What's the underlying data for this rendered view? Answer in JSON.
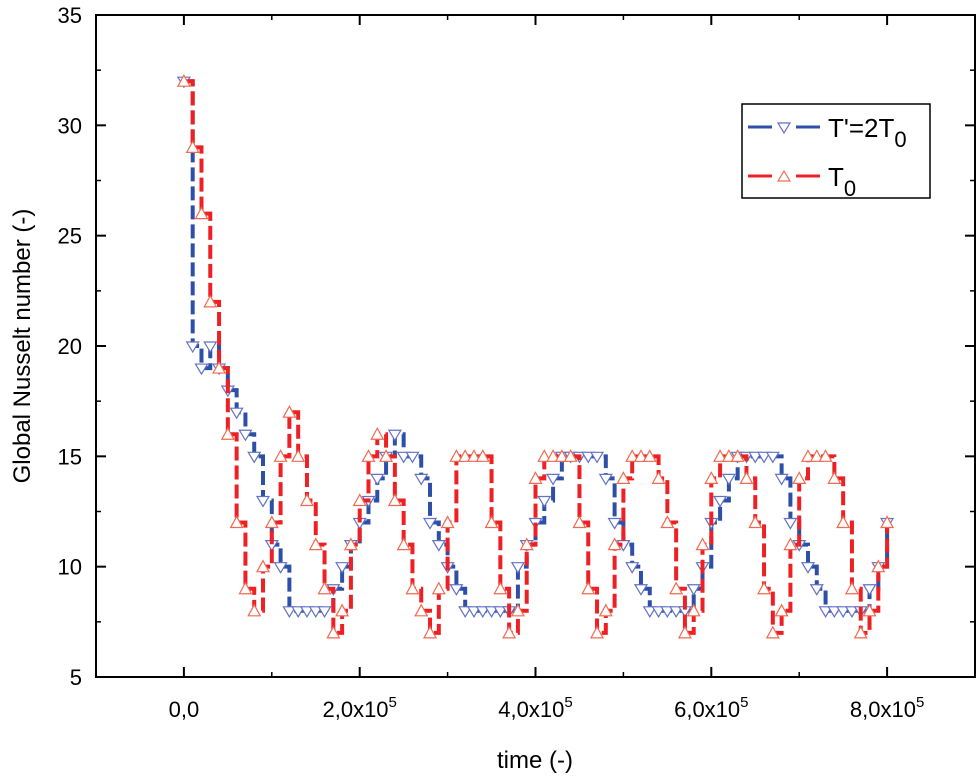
{
  "chart_data": {
    "type": "line",
    "title": "",
    "xlabel": "time (-)",
    "ylabel": "Global Nusselt number (-)",
    "xlim": [
      -100000,
      900000
    ],
    "ylim": [
      5,
      35
    ],
    "grid": false,
    "legend_position": "top-right",
    "x_ticks": [
      {
        "value": 0,
        "mantissa": "0,0",
        "exp": ""
      },
      {
        "value": 200000,
        "mantissa": "2,0x10",
        "exp": "5"
      },
      {
        "value": 400000,
        "mantissa": "4,0x10",
        "exp": "5"
      },
      {
        "value": 600000,
        "mantissa": "6,0x10",
        "exp": "5"
      },
      {
        "value": 800000,
        "mantissa": "8,0x10",
        "exp": "5"
      }
    ],
    "y_ticks": [
      "5",
      "10",
      "15",
      "20",
      "25",
      "30",
      "35"
    ],
    "x": [
      0,
      10000,
      20000,
      30000,
      40000,
      50000,
      60000,
      70000,
      80000,
      90000,
      100000,
      110000,
      120000,
      130000,
      140000,
      150000,
      160000,
      170000,
      180000,
      190000,
      200000,
      210000,
      220000,
      230000,
      240000,
      250000,
      260000,
      270000,
      280000,
      290000,
      300000,
      310000,
      320000,
      330000,
      340000,
      350000,
      360000,
      370000,
      380000,
      390000,
      400000,
      410000,
      420000,
      430000,
      440000,
      450000,
      460000,
      470000,
      480000,
      490000,
      500000,
      510000,
      520000,
      530000,
      540000,
      550000,
      560000,
      570000,
      580000,
      590000,
      600000,
      610000,
      620000,
      630000,
      640000,
      650000,
      660000,
      670000,
      680000,
      690000,
      700000,
      710000,
      720000,
      730000,
      740000,
      750000,
      760000,
      770000,
      780000,
      790000,
      800000
    ],
    "series": [
      {
        "name": "T'=2T",
        "name_subscript": "0",
        "color": "#2e4fa8",
        "marker": "triangle-down",
        "values": [
          32,
          20,
          19,
          20,
          19,
          18,
          17,
          16,
          15,
          13,
          11,
          10,
          8,
          8,
          8,
          8,
          8,
          9,
          10,
          11,
          12,
          13,
          14,
          15,
          16,
          15,
          15,
          14,
          12,
          11,
          10,
          9,
          8,
          8,
          8,
          8,
          8,
          8,
          10,
          11,
          12,
          13,
          14,
          15,
          15,
          15,
          15,
          15,
          14,
          12,
          11,
          10,
          9,
          8,
          8,
          8,
          8,
          8,
          9,
          10,
          12,
          13,
          14,
          15,
          15,
          15,
          15,
          15,
          14,
          12,
          11,
          10,
          9,
          8,
          8,
          8,
          8,
          8,
          9,
          10,
          12
        ]
      },
      {
        "name": "T",
        "name_subscript": "0",
        "color": "#ee2024",
        "marker": "triangle-up",
        "values": [
          32,
          29,
          26,
          22,
          19,
          16,
          12,
          9,
          8,
          10,
          12,
          15,
          17,
          15,
          13,
          11,
          9,
          7,
          8,
          11,
          13,
          15,
          16,
          15,
          13,
          11,
          9,
          8,
          7,
          9,
          12,
          15,
          15,
          15,
          15,
          12,
          9,
          7,
          8,
          11,
          14,
          15,
          15,
          15,
          15,
          12,
          9,
          7,
          8,
          11,
          14,
          15,
          15,
          15,
          14,
          12,
          9,
          7,
          8,
          11,
          14,
          15,
          15,
          15,
          14,
          12,
          9,
          7,
          8,
          11,
          14,
          15,
          15,
          15,
          14,
          12,
          9,
          7,
          8,
          10,
          12
        ]
      }
    ]
  }
}
